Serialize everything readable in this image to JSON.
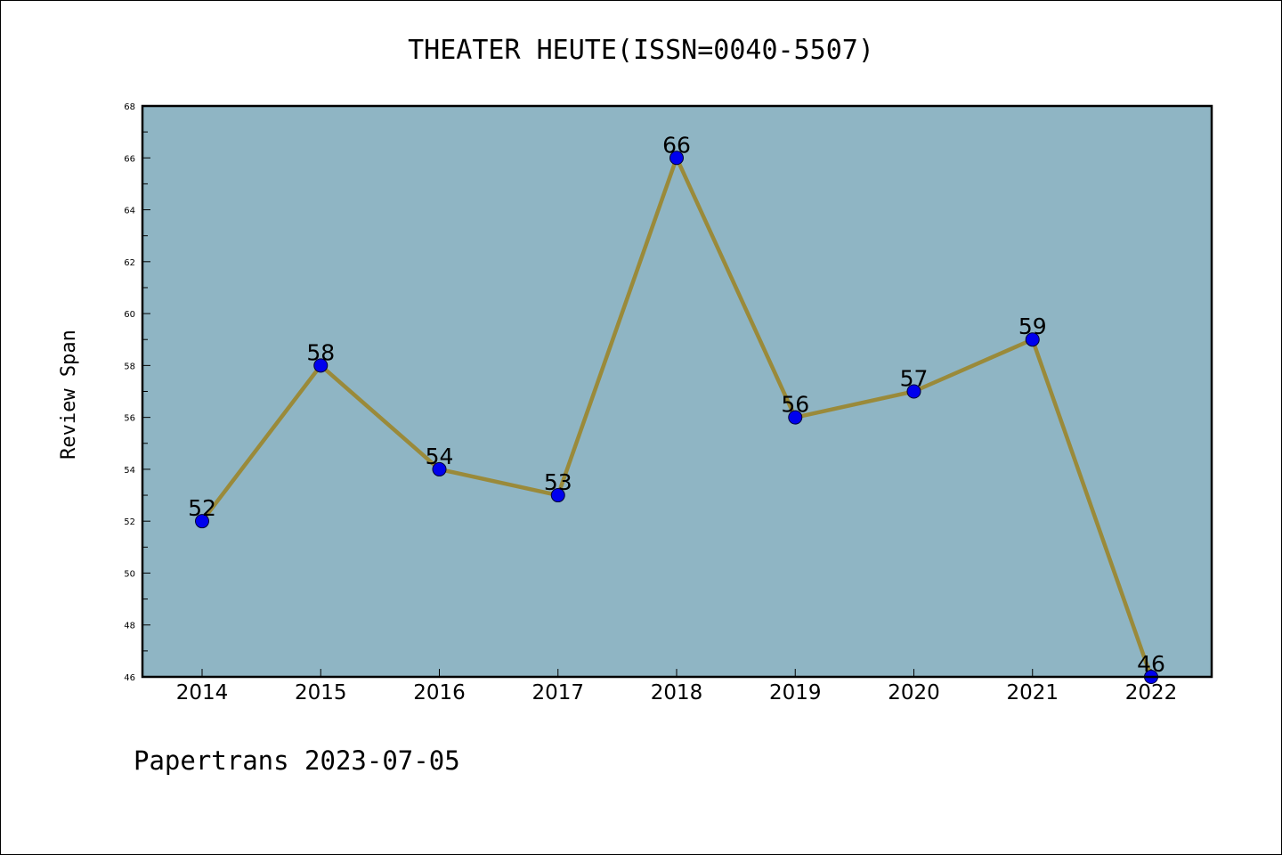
{
  "chart_data": {
    "type": "line",
    "title": "THEATER HEUTE(ISSN=0040-5507)",
    "ylabel": "Review Span",
    "xlabel": "",
    "categories": [
      "2014",
      "2015",
      "2016",
      "2017",
      "2018",
      "2019",
      "2020",
      "2021",
      "2022"
    ],
    "values": [
      52,
      58,
      54,
      53,
      66,
      56,
      57,
      59,
      46
    ],
    "ylim": [
      46,
      68
    ],
    "yticks": [
      46,
      48,
      50,
      52,
      54,
      56,
      58,
      60,
      62,
      64,
      66,
      68
    ],
    "grid": false,
    "legend": "none",
    "colors": {
      "plot_background": "#8fb5c4",
      "line": "#9a8a3a",
      "marker": "#0000ee",
      "axis": "#000000"
    }
  },
  "footer": "Papertrans 2023-07-05"
}
